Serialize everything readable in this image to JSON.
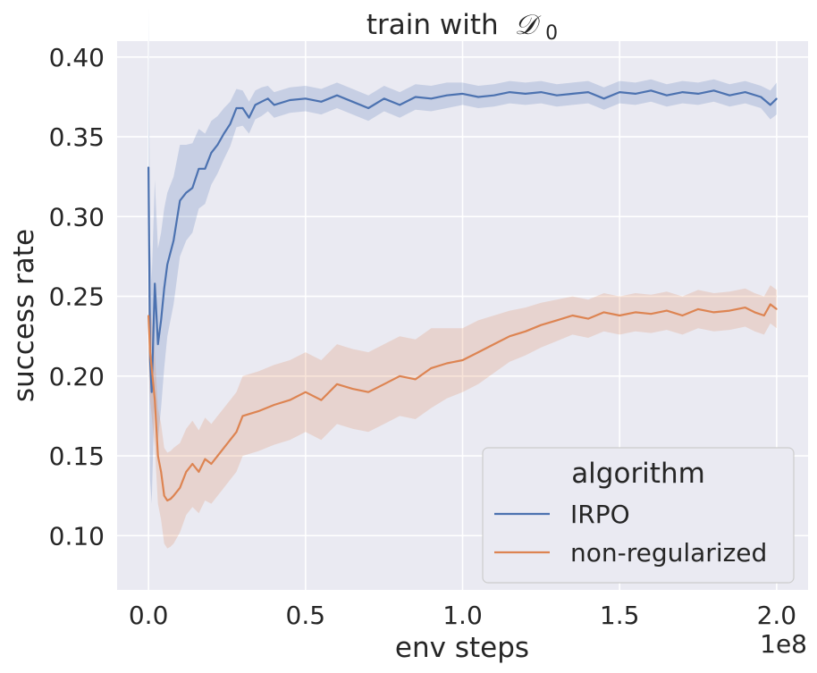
{
  "chart_data": {
    "type": "line",
    "title": "train with 𝒟₀",
    "title_main": "train with",
    "title_math_letter": "𝒟",
    "title_math_sub": "0",
    "xlabel": "env steps",
    "ylabel": "success rate",
    "x_offset_label": "1e8",
    "xlim": [
      -0.1,
      2.1
    ],
    "ylim": [
      0.066,
      0.41
    ],
    "x_ticks": [
      0.0,
      0.5,
      1.0,
      1.5,
      2.0
    ],
    "x_tick_labels": [
      "0.0",
      "0.5",
      "1.0",
      "1.5",
      "2.0"
    ],
    "y_ticks": [
      0.1,
      0.15,
      0.2,
      0.25,
      0.3,
      0.35,
      0.4
    ],
    "y_tick_labels": [
      "0.10",
      "0.15",
      "0.20",
      "0.25",
      "0.30",
      "0.35",
      "0.40"
    ],
    "grid": true,
    "legend": {
      "title": "algorithm",
      "placement": "lower-right"
    },
    "series": [
      {
        "name": "IRPO",
        "color": "#4c72b0",
        "x": [
          0.0,
          0.005,
          0.01,
          0.02,
          0.03,
          0.04,
          0.05,
          0.06,
          0.08,
          0.1,
          0.12,
          0.14,
          0.16,
          0.18,
          0.2,
          0.22,
          0.24,
          0.26,
          0.28,
          0.3,
          0.32,
          0.34,
          0.36,
          0.38,
          0.4,
          0.45,
          0.5,
          0.55,
          0.6,
          0.65,
          0.7,
          0.75,
          0.8,
          0.85,
          0.9,
          0.95,
          1.0,
          1.05,
          1.1,
          1.15,
          1.2,
          1.25,
          1.3,
          1.35,
          1.4,
          1.45,
          1.5,
          1.55,
          1.6,
          1.65,
          1.7,
          1.75,
          1.8,
          1.85,
          1.9,
          1.95,
          1.98,
          2.0
        ],
        "y": [
          0.331,
          0.21,
          0.19,
          0.258,
          0.22,
          0.235,
          0.255,
          0.27,
          0.285,
          0.31,
          0.315,
          0.318,
          0.33,
          0.33,
          0.34,
          0.345,
          0.352,
          0.358,
          0.368,
          0.368,
          0.362,
          0.37,
          0.372,
          0.374,
          0.37,
          0.373,
          0.374,
          0.372,
          0.376,
          0.372,
          0.368,
          0.374,
          0.37,
          0.375,
          0.374,
          0.376,
          0.377,
          0.375,
          0.376,
          0.378,
          0.377,
          0.378,
          0.376,
          0.377,
          0.378,
          0.374,
          0.378,
          0.377,
          0.379,
          0.376,
          0.378,
          0.377,
          0.379,
          0.376,
          0.378,
          0.375,
          0.37,
          0.374
        ],
        "band": [
          0.1,
          0.075,
          0.07,
          0.065,
          0.06,
          0.055,
          0.05,
          0.045,
          0.04,
          0.035,
          0.03,
          0.028,
          0.025,
          0.022,
          0.02,
          0.018,
          0.016,
          0.014,
          0.012,
          0.011,
          0.01,
          0.009,
          0.009,
          0.008,
          0.008,
          0.008,
          0.008,
          0.008,
          0.008,
          0.008,
          0.008,
          0.008,
          0.008,
          0.008,
          0.008,
          0.008,
          0.007,
          0.007,
          0.007,
          0.007,
          0.007,
          0.007,
          0.007,
          0.007,
          0.007,
          0.007,
          0.007,
          0.007,
          0.007,
          0.007,
          0.007,
          0.007,
          0.007,
          0.007,
          0.007,
          0.007,
          0.009,
          0.01
        ]
      },
      {
        "name": "non-regularized",
        "color": "#dd8452",
        "x": [
          0.0,
          0.005,
          0.01,
          0.02,
          0.03,
          0.04,
          0.05,
          0.06,
          0.07,
          0.08,
          0.1,
          0.12,
          0.14,
          0.16,
          0.18,
          0.2,
          0.22,
          0.24,
          0.26,
          0.28,
          0.3,
          0.35,
          0.4,
          0.45,
          0.5,
          0.55,
          0.6,
          0.65,
          0.7,
          0.75,
          0.8,
          0.85,
          0.9,
          0.95,
          1.0,
          1.05,
          1.1,
          1.15,
          1.2,
          1.25,
          1.3,
          1.35,
          1.4,
          1.45,
          1.5,
          1.55,
          1.6,
          1.65,
          1.7,
          1.75,
          1.8,
          1.85,
          1.9,
          1.93,
          1.96,
          1.98,
          2.0
        ],
        "y": [
          0.238,
          0.215,
          0.205,
          0.185,
          0.15,
          0.14,
          0.125,
          0.122,
          0.123,
          0.125,
          0.13,
          0.14,
          0.145,
          0.14,
          0.148,
          0.145,
          0.15,
          0.155,
          0.16,
          0.165,
          0.175,
          0.178,
          0.182,
          0.185,
          0.19,
          0.185,
          0.195,
          0.192,
          0.19,
          0.195,
          0.2,
          0.198,
          0.205,
          0.208,
          0.21,
          0.215,
          0.22,
          0.225,
          0.228,
          0.232,
          0.235,
          0.238,
          0.236,
          0.24,
          0.238,
          0.24,
          0.239,
          0.241,
          0.238,
          0.242,
          0.24,
          0.241,
          0.243,
          0.24,
          0.238,
          0.245,
          0.242
        ],
        "band": [
          0.03,
          0.03,
          0.03,
          0.03,
          0.03,
          0.03,
          0.03,
          0.03,
          0.03,
          0.03,
          0.028,
          0.027,
          0.027,
          0.026,
          0.026,
          0.025,
          0.025,
          0.025,
          0.025,
          0.025,
          0.025,
          0.025,
          0.025,
          0.025,
          0.025,
          0.025,
          0.025,
          0.025,
          0.025,
          0.025,
          0.025,
          0.025,
          0.025,
          0.022,
          0.02,
          0.02,
          0.018,
          0.016,
          0.015,
          0.014,
          0.013,
          0.012,
          0.012,
          0.012,
          0.012,
          0.012,
          0.012,
          0.012,
          0.012,
          0.012,
          0.012,
          0.012,
          0.012,
          0.012,
          0.012,
          0.012,
          0.012
        ]
      }
    ]
  }
}
